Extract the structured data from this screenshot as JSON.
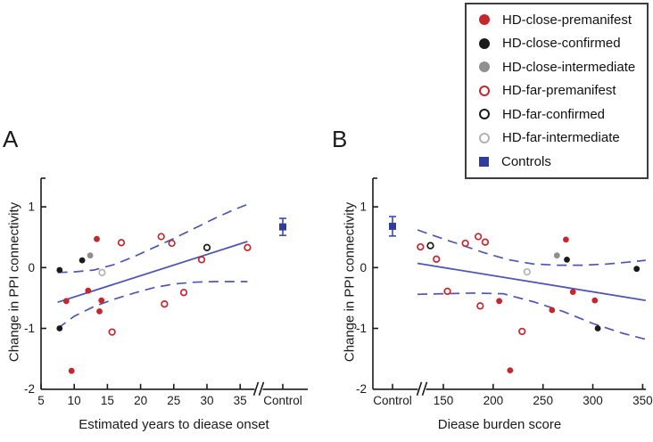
{
  "figure": {
    "panel_a_letter": "A",
    "panel_b_letter": "B"
  },
  "colors": {
    "red": "#c5272d",
    "black": "#1a1a1a",
    "gray": "#8f8f8f",
    "light_gray": "#b3b3b3",
    "blue_square": "#2e3d9e",
    "blue_line": "#4f57b3",
    "axis": "#1a1a1a"
  },
  "legend": {
    "items": [
      {
        "label": "HD-close-premanifest",
        "marker": "circle-filled",
        "color_key": "red"
      },
      {
        "label": "HD-close-confirmed",
        "marker": "circle-filled",
        "color_key": "black"
      },
      {
        "label": "HD-close-intermediate",
        "marker": "circle-filled",
        "color_key": "gray"
      },
      {
        "label": "HD-far-premanifest",
        "marker": "circle-open",
        "color_key": "red"
      },
      {
        "label": "HD-far-confirmed",
        "marker": "circle-open",
        "color_key": "black"
      },
      {
        "label": "HD-far-intermediate",
        "marker": "circle-open",
        "color_key": "light_gray"
      },
      {
        "label": "Controls",
        "marker": "square-filled",
        "color_key": "blue_square"
      }
    ]
  },
  "chart_data": [
    {
      "type": "scatter",
      "panel": "A",
      "xlabel": "Estimated years to diease onset",
      "ylabel": "Change in PPI connectivity",
      "x_ticks": [
        5,
        10,
        15,
        20,
        25,
        30,
        35
      ],
      "x_control_label": "Control",
      "control_position": "right",
      "y_ticks": [
        1,
        0,
        -1,
        -2
      ],
      "xlim": [
        5,
        37
      ],
      "ylim": [
        -2,
        1.5
      ],
      "grid": false,
      "series": [
        {
          "name": "HD-close-premanifest",
          "marker": "circle-filled",
          "color_key": "red",
          "points": [
            [
              13.4,
              0.47
            ],
            [
              12.1,
              -0.38
            ],
            [
              8.8,
              -0.55
            ],
            [
              14.1,
              -0.54
            ],
            [
              13.8,
              -0.72
            ],
            [
              9.6,
              -1.7
            ]
          ]
        },
        {
          "name": "HD-close-confirmed",
          "marker": "circle-filled",
          "color_key": "black",
          "points": [
            [
              7.8,
              -0.04
            ],
            [
              11.2,
              0.12
            ],
            [
              7.8,
              -1.0
            ]
          ]
        },
        {
          "name": "HD-close-intermediate",
          "marker": "circle-filled",
          "color_key": "gray",
          "points": [
            [
              12.4,
              0.2
            ]
          ]
        },
        {
          "name": "HD-far-premanifest",
          "marker": "circle-open",
          "color_key": "red",
          "points": [
            [
              17.1,
              0.41
            ],
            [
              23.1,
              0.51
            ],
            [
              24.7,
              0.4
            ],
            [
              29.2,
              0.13
            ],
            [
              36.1,
              0.33
            ],
            [
              26.5,
              -0.41
            ],
            [
              23.6,
              -0.6
            ],
            [
              15.7,
              -1.06
            ]
          ]
        },
        {
          "name": "HD-far-confirmed",
          "marker": "circle-open",
          "color_key": "black",
          "points": [
            [
              30.0,
              0.33
            ]
          ]
        },
        {
          "name": "HD-far-intermediate",
          "marker": "circle-open",
          "color_key": "light_gray",
          "points": [
            [
              14.2,
              -0.08
            ]
          ]
        }
      ],
      "control_point": {
        "label": "Controls",
        "y": 0.67,
        "err_low": 0.53,
        "err_high": 0.81
      },
      "fit_lines": {
        "solid": [
          [
            7.5,
            -0.57
          ],
          [
            36.1,
            0.43
          ]
        ],
        "upper_dashed": [
          [
            7.5,
            -0.08
          ],
          [
            10,
            -0.07
          ],
          [
            13,
            -0.04
          ],
          [
            16,
            0.05
          ],
          [
            19,
            0.18
          ],
          [
            22,
            0.33
          ],
          [
            25,
            0.48
          ],
          [
            28,
            0.64
          ],
          [
            31,
            0.8
          ],
          [
            34,
            0.95
          ],
          [
            36.1,
            1.04
          ]
        ],
        "lower_dashed": [
          [
            7.5,
            -1.0
          ],
          [
            10,
            -0.8
          ],
          [
            13,
            -0.64
          ],
          [
            16,
            -0.52
          ],
          [
            19,
            -0.42
          ],
          [
            22,
            -0.33
          ],
          [
            25,
            -0.27
          ],
          [
            28,
            -0.24
          ],
          [
            31,
            -0.23
          ],
          [
            34,
            -0.23
          ],
          [
            36.1,
            -0.23
          ]
        ]
      }
    },
    {
      "type": "scatter",
      "panel": "B",
      "xlabel": "Diease burden score",
      "ylabel": "Change in PPI connectivity",
      "x_ticks": [
        150,
        200,
        250,
        300,
        350
      ],
      "x_control_label": "Control",
      "control_position": "left",
      "y_ticks": [
        1,
        0,
        -1,
        -2
      ],
      "xlim": [
        133,
        353
      ],
      "ylim": [
        -2,
        1.5
      ],
      "grid": false,
      "series": [
        {
          "name": "HD-close-premanifest",
          "marker": "circle-filled",
          "color_key": "red",
          "points": [
            [
              273,
              0.46
            ],
            [
              206,
              -0.55
            ],
            [
              280,
              -0.4
            ],
            [
              302,
              -0.54
            ],
            [
              259,
              -0.7
            ],
            [
              217,
              -1.69
            ]
          ]
        },
        {
          "name": "HD-close-confirmed",
          "marker": "circle-filled",
          "color_key": "black",
          "points": [
            [
              344,
              -0.02
            ],
            [
              274,
              0.13
            ],
            [
              305,
              -1.0
            ]
          ]
        },
        {
          "name": "HD-close-intermediate",
          "marker": "circle-filled",
          "color_key": "gray",
          "points": [
            [
              264,
              0.2
            ]
          ]
        },
        {
          "name": "HD-far-premanifest",
          "marker": "circle-open",
          "color_key": "red",
          "points": [
            [
              127,
              0.34
            ],
            [
              143,
              0.14
            ],
            [
              172,
              0.4
            ],
            [
              185,
              0.51
            ],
            [
              192,
              0.42
            ],
            [
              154,
              -0.39
            ],
            [
              187,
              -0.63
            ],
            [
              229,
              -1.05
            ]
          ]
        },
        {
          "name": "HD-far-confirmed",
          "marker": "circle-open",
          "color_key": "black",
          "points": [
            [
              137,
              0.36
            ]
          ]
        },
        {
          "name": "HD-far-intermediate",
          "marker": "circle-open",
          "color_key": "light_gray",
          "points": [
            [
              234,
              -0.07
            ]
          ]
        }
      ],
      "control_point": {
        "label": "Controls",
        "y": 0.68,
        "err_low": 0.52,
        "err_high": 0.84
      },
      "fit_lines": {
        "solid": [
          [
            124,
            0.07
          ],
          [
            353,
            -0.54
          ]
        ],
        "upper_dashed": [
          [
            124,
            0.62
          ],
          [
            145,
            0.5
          ],
          [
            165,
            0.39
          ],
          [
            190,
            0.25
          ],
          [
            215,
            0.13
          ],
          [
            240,
            0.06
          ],
          [
            265,
            0.04
          ],
          [
            290,
            0.04
          ],
          [
            315,
            0.06
          ],
          [
            335,
            0.09
          ],
          [
            353,
            0.12
          ]
        ],
        "lower_dashed": [
          [
            124,
            -0.44
          ],
          [
            150,
            -0.43
          ],
          [
            180,
            -0.42
          ],
          [
            210,
            -0.43
          ],
          [
            240,
            -0.56
          ],
          [
            270,
            -0.72
          ],
          [
            300,
            -0.92
          ],
          [
            330,
            -1.08
          ],
          [
            353,
            -1.18
          ]
        ]
      }
    }
  ]
}
